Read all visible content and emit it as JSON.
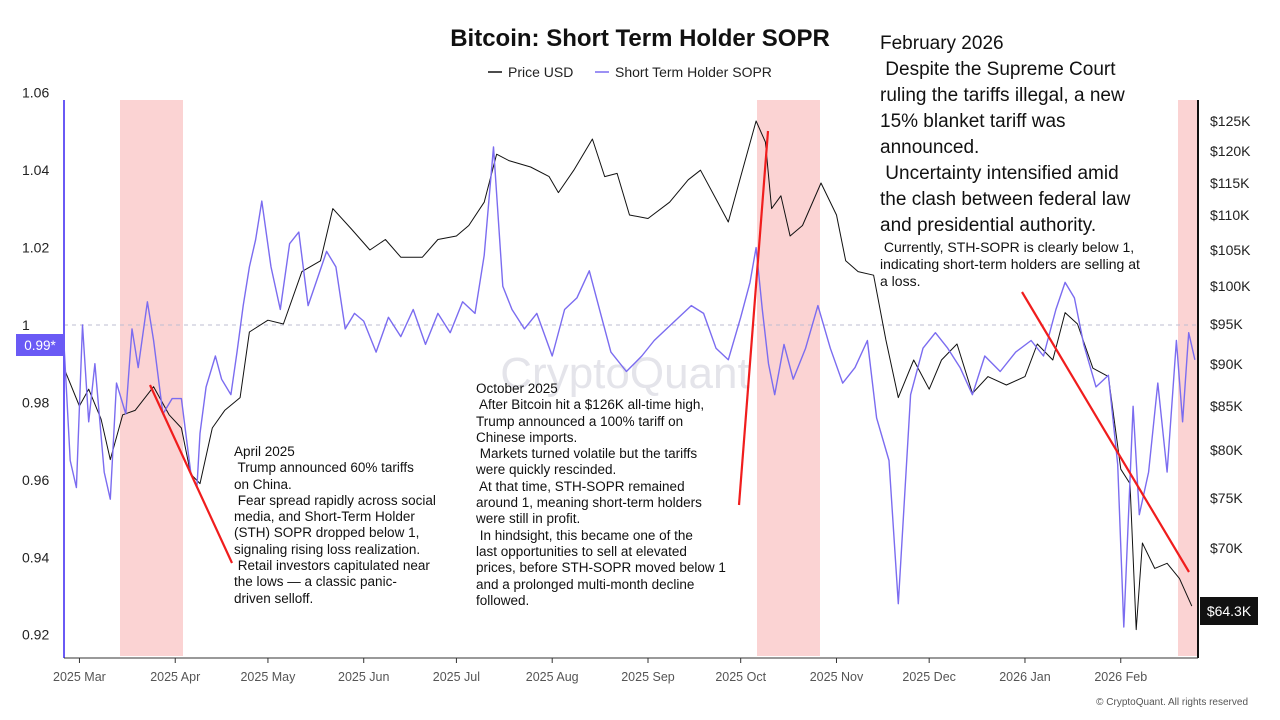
{
  "chart_data": {
    "type": "line",
    "title": "Bitcoin: Short Term Holder SOPR",
    "legend": [
      {
        "name": "Price USD",
        "color": "#111111"
      },
      {
        "name": "Short Term Holder SOPR",
        "color": "#7b6cf0"
      }
    ],
    "x_ticks": [
      "2025 Mar",
      "2025 Apr",
      "2025 May",
      "2025 Jun",
      "2025 Jul",
      "2025 Aug",
      "2025 Sep",
      "2025 Oct",
      "2025 Nov",
      "2025 Dec",
      "2026 Jan",
      "2026 Feb"
    ],
    "left_axis": {
      "ylim": [
        0.915,
        1.065
      ],
      "ticks": [
        "1.06",
        "1.04",
        "1.02",
        "1",
        "0.98",
        "0.96",
        "0.94",
        "0.92"
      ],
      "reference": 1
    },
    "right_axis": {
      "ticks": [
        "$125K",
        "$120K",
        "$115K",
        "$110K",
        "$105K",
        "$100K",
        "$95K",
        "$90K",
        "$85K",
        "$80K",
        "$75K",
        "$70K"
      ]
    },
    "current_sopr_label": "0.99*",
    "current_price_label": "$64.3K",
    "shaded_periods": [
      "2025 Mar to 2025 Apr",
      "2025 Oct to 2025 Nov",
      "2026 Feb end"
    ],
    "series": [
      {
        "name": "Price USD",
        "points": [
          [
            "2025-02-24",
            89.5
          ],
          [
            "2025-03-01",
            85.0
          ],
          [
            "2025-03-04",
            87.0
          ],
          [
            "2025-03-08",
            83.5
          ],
          [
            "2025-03-11",
            79.0
          ],
          [
            "2025-03-15",
            84.0
          ],
          [
            "2025-03-19",
            84.5
          ],
          [
            "2025-03-25",
            87.3
          ],
          [
            "2025-03-30",
            84.0
          ],
          [
            "2025-04-03",
            82.5
          ],
          [
            "2025-04-06",
            77.5
          ],
          [
            "2025-04-09",
            76.5
          ],
          [
            "2025-04-13",
            82.5
          ],
          [
            "2025-04-17",
            84.5
          ],
          [
            "2025-04-22",
            86.0
          ],
          [
            "2025-04-25",
            94.0
          ],
          [
            "2025-05-01",
            95.5
          ],
          [
            "2025-05-06",
            95.0
          ],
          [
            "2025-05-12",
            102.0
          ],
          [
            "2025-05-18",
            103.5
          ],
          [
            "2025-05-22",
            111.0
          ],
          [
            "2025-05-28",
            108.0
          ],
          [
            "2025-06-03",
            105.0
          ],
          [
            "2025-06-08",
            106.5
          ],
          [
            "2025-06-13",
            104.0
          ],
          [
            "2025-06-20",
            104.0
          ],
          [
            "2025-06-25",
            106.5
          ],
          [
            "2025-07-01",
            107.0
          ],
          [
            "2025-07-05",
            108.5
          ],
          [
            "2025-07-10",
            112.0
          ],
          [
            "2025-07-14",
            119.5
          ],
          [
            "2025-07-18",
            118.5
          ],
          [
            "2025-07-25",
            117.5
          ],
          [
            "2025-07-31",
            116.0
          ],
          [
            "2025-08-03",
            113.5
          ],
          [
            "2025-08-08",
            117.0
          ],
          [
            "2025-08-14",
            122.0
          ],
          [
            "2025-08-18",
            116.0
          ],
          [
            "2025-08-22",
            116.5
          ],
          [
            "2025-08-26",
            110.0
          ],
          [
            "2025-09-01",
            109.5
          ],
          [
            "2025-09-08",
            112.0
          ],
          [
            "2025-09-14",
            115.5
          ],
          [
            "2025-09-18",
            117.0
          ],
          [
            "2025-09-23",
            112.5
          ],
          [
            "2025-09-27",
            109.0
          ],
          [
            "2025-10-01",
            116.0
          ],
          [
            "2025-10-06",
            125.0
          ],
          [
            "2025-10-09",
            121.5
          ],
          [
            "2025-10-11",
            111.0
          ],
          [
            "2025-10-14",
            113.0
          ],
          [
            "2025-10-17",
            107.0
          ],
          [
            "2025-10-21",
            108.5
          ],
          [
            "2025-10-27",
            115.0
          ],
          [
            "2025-11-01",
            110.0
          ],
          [
            "2025-11-04",
            103.5
          ],
          [
            "2025-11-08",
            102.0
          ],
          [
            "2025-11-13",
            101.5
          ],
          [
            "2025-11-17",
            93.0
          ],
          [
            "2025-11-21",
            86.0
          ],
          [
            "2025-11-26",
            90.5
          ],
          [
            "2025-12-01",
            87.0
          ],
          [
            "2025-12-05",
            90.5
          ],
          [
            "2025-12-10",
            92.5
          ],
          [
            "2025-12-15",
            86.5
          ],
          [
            "2025-12-20",
            88.5
          ],
          [
            "2025-12-26",
            87.5
          ],
          [
            "2026-01-01",
            88.5
          ],
          [
            "2026-01-05",
            92.5
          ],
          [
            "2026-01-10",
            90.5
          ],
          [
            "2026-01-14",
            96.5
          ],
          [
            "2026-01-18",
            95.0
          ],
          [
            "2026-01-23",
            89.5
          ],
          [
            "2026-01-28",
            88.5
          ],
          [
            "2026-02-01",
            78.0
          ],
          [
            "2026-02-04",
            76.5
          ],
          [
            "2026-02-06",
            62.0
          ],
          [
            "2026-02-08",
            70.5
          ],
          [
            "2026-02-12",
            68.0
          ],
          [
            "2026-02-16",
            68.5
          ],
          [
            "2026-02-20",
            67.0
          ],
          [
            "2026-02-24",
            64.3
          ]
        ]
      },
      {
        "name": "Short Term Holder SOPR",
        "points": [
          [
            "2025-02-24",
            0.995
          ],
          [
            "2025-02-26",
            0.965
          ],
          [
            "2025-02-28",
            0.958
          ],
          [
            "2025-03-02",
            1.0
          ],
          [
            "2025-03-04",
            0.975
          ],
          [
            "2025-03-06",
            0.99
          ],
          [
            "2025-03-09",
            0.962
          ],
          [
            "2025-03-11",
            0.955
          ],
          [
            "2025-03-13",
            0.985
          ],
          [
            "2025-03-16",
            0.977
          ],
          [
            "2025-03-18",
            0.999
          ],
          [
            "2025-03-20",
            0.989
          ],
          [
            "2025-03-23",
            1.006
          ],
          [
            "2025-03-25",
            0.996
          ],
          [
            "2025-03-28",
            0.977
          ],
          [
            "2025-03-31",
            0.981
          ],
          [
            "2025-04-03",
            0.981
          ],
          [
            "2025-04-06",
            0.962
          ],
          [
            "2025-04-08",
            0.958
          ],
          [
            "2025-04-09",
            0.972
          ],
          [
            "2025-04-11",
            0.984
          ],
          [
            "2025-04-14",
            0.992
          ],
          [
            "2025-04-16",
            0.986
          ],
          [
            "2025-04-19",
            0.982
          ],
          [
            "2025-04-21",
            0.993
          ],
          [
            "2025-04-23",
            1.005
          ],
          [
            "2025-04-25",
            1.015
          ],
          [
            "2025-04-27",
            1.022
          ],
          [
            "2025-04-29",
            1.032
          ],
          [
            "2025-05-02",
            1.015
          ],
          [
            "2025-05-05",
            1.004
          ],
          [
            "2025-05-08",
            1.021
          ],
          [
            "2025-05-11",
            1.024
          ],
          [
            "2025-05-14",
            1.005
          ],
          [
            "2025-05-17",
            1.012
          ],
          [
            "2025-05-20",
            1.019
          ],
          [
            "2025-05-23",
            1.015
          ],
          [
            "2025-05-26",
            0.999
          ],
          [
            "2025-05-29",
            1.003
          ],
          [
            "2025-06-01",
            1.001
          ],
          [
            "2025-06-05",
            0.993
          ],
          [
            "2025-06-09",
            1.002
          ],
          [
            "2025-06-13",
            0.997
          ],
          [
            "2025-06-17",
            1.004
          ],
          [
            "2025-06-21",
            0.995
          ],
          [
            "2025-06-25",
            1.003
          ],
          [
            "2025-06-29",
            0.998
          ],
          [
            "2025-07-03",
            1.006
          ],
          [
            "2025-07-07",
            1.003
          ],
          [
            "2025-07-10",
            1.018
          ],
          [
            "2025-07-13",
            1.046
          ],
          [
            "2025-07-16",
            1.01
          ],
          [
            "2025-07-19",
            1.004
          ],
          [
            "2025-07-23",
            0.999
          ],
          [
            "2025-07-27",
            1.003
          ],
          [
            "2025-08-01",
            0.992
          ],
          [
            "2025-08-05",
            1.004
          ],
          [
            "2025-08-09",
            1.007
          ],
          [
            "2025-08-13",
            1.014
          ],
          [
            "2025-08-17",
            1.002
          ],
          [
            "2025-08-20",
            0.993
          ],
          [
            "2025-08-25",
            0.988
          ],
          [
            "2025-08-30",
            0.992
          ],
          [
            "2025-09-03",
            0.996
          ],
          [
            "2025-09-07",
            0.999
          ],
          [
            "2025-09-11",
            1.002
          ],
          [
            "2025-09-15",
            1.005
          ],
          [
            "2025-09-19",
            1.003
          ],
          [
            "2025-09-23",
            0.994
          ],
          [
            "2025-09-27",
            0.991
          ],
          [
            "2025-10-01",
            1.002
          ],
          [
            "2025-10-04",
            1.011
          ],
          [
            "2025-10-06",
            1.02
          ],
          [
            "2025-10-08",
            1.004
          ],
          [
            "2025-10-10",
            0.99
          ],
          [
            "2025-10-12",
            0.982
          ],
          [
            "2025-10-15",
            0.995
          ],
          [
            "2025-10-18",
            0.986
          ],
          [
            "2025-10-22",
            0.994
          ],
          [
            "2025-10-26",
            1.005
          ],
          [
            "2025-10-30",
            0.994
          ],
          [
            "2025-11-03",
            0.985
          ],
          [
            "2025-11-07",
            0.989
          ],
          [
            "2025-11-11",
            0.996
          ],
          [
            "2025-11-14",
            0.976
          ],
          [
            "2025-11-18",
            0.965
          ],
          [
            "2025-11-21",
            0.928
          ],
          [
            "2025-11-25",
            0.982
          ],
          [
            "2025-11-29",
            0.994
          ],
          [
            "2025-12-03",
            0.998
          ],
          [
            "2025-12-07",
            0.994
          ],
          [
            "2025-12-11",
            0.989
          ],
          [
            "2025-12-15",
            0.982
          ],
          [
            "2025-12-19",
            0.992
          ],
          [
            "2025-12-24",
            0.988
          ],
          [
            "2025-12-29",
            0.993
          ],
          [
            "2026-01-03",
            0.996
          ],
          [
            "2026-01-07",
            0.992
          ],
          [
            "2026-01-11",
            1.004
          ],
          [
            "2026-01-14",
            1.011
          ],
          [
            "2026-01-17",
            1.007
          ],
          [
            "2026-01-20",
            0.995
          ],
          [
            "2026-01-24",
            0.984
          ],
          [
            "2026-01-28",
            0.987
          ],
          [
            "2026-01-31",
            0.964
          ],
          [
            "2026-02-02",
            0.922
          ],
          [
            "2026-02-05",
            0.979
          ],
          [
            "2026-02-07",
            0.951
          ],
          [
            "2026-02-10",
            0.962
          ],
          [
            "2026-02-13",
            0.985
          ],
          [
            "2026-02-16",
            0.962
          ],
          [
            "2026-02-19",
            0.996
          ],
          [
            "2026-02-21",
            0.975
          ],
          [
            "2026-02-23",
            0.998
          ],
          [
            "2026-02-25",
            0.991
          ]
        ]
      }
    ]
  },
  "annotations": {
    "april": {
      "lines": [
        "April 2025",
        " Trump announced 60% tariffs",
        "on China.",
        " Fear spread rapidly across social",
        "media, and Short-Term Holder",
        "(STH) SOPR dropped below 1,",
        "signaling rising loss realization.",
        " Retail investors capitulated near",
        "the lows — a classic panic-",
        "driven selloff."
      ]
    },
    "october": {
      "lines": [
        "October 2025",
        " After Bitcoin hit a $126K all-time high,",
        "Trump announced a 100% tariff on",
        "Chinese imports.",
        " Markets turned volatile but the tariffs",
        "were quickly rescinded.",
        " At that time, STH-SOPR remained",
        "around 1, meaning short-term holders",
        "were still in profit.",
        " In hindsight, this became one of the",
        "last opportunities to sell at elevated",
        "prices, before STH-SOPR moved below 1",
        "and a prolonged multi-month decline",
        "followed."
      ]
    },
    "february": {
      "lines": [
        "February 2026",
        " Despite the Supreme Court",
        "ruling the tariffs illegal, a new",
        "15% blanket tariff was",
        "announced.",
        " Uncertainty intensified amid",
        "the clash between federal law",
        "and presidential authority."
      ],
      "small_lines": [
        " Currently, STH-SOPR is clearly below 1,",
        "indicating short-term holders are selling at",
        "a loss."
      ]
    }
  },
  "watermark": "CryptoQuant",
  "credit": "© CryptoQuant. All rights reserved"
}
